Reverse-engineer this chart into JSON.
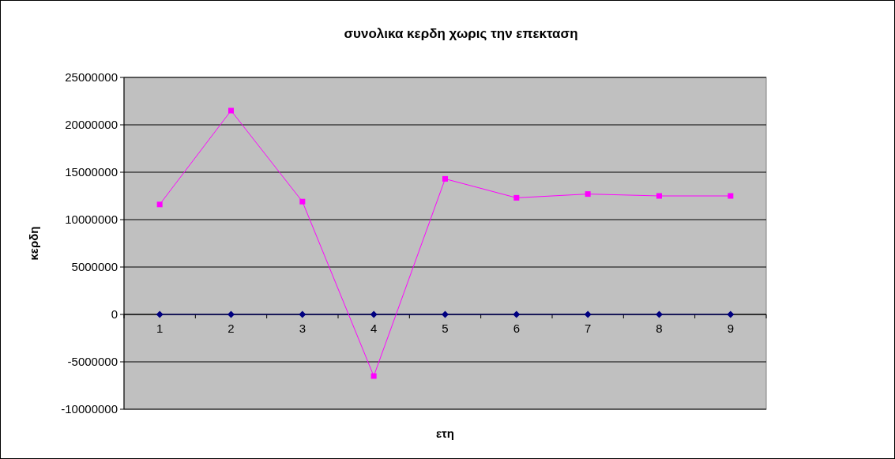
{
  "chart_data": {
    "type": "line",
    "title": "συνολικα κερδη χωρις την επεκταση",
    "xlabel": "ετη",
    "ylabel": "κερδη",
    "categories": [
      "1",
      "2",
      "3",
      "4",
      "5",
      "6",
      "7",
      "8",
      "9"
    ],
    "series": [
      {
        "color": "#000080",
        "marker": "diamond",
        "values": [
          0,
          0,
          0,
          0,
          0,
          0,
          0,
          0,
          0
        ]
      },
      {
        "color": "#ff00ff",
        "marker": "square",
        "values": [
          11600000,
          21500000,
          11900000,
          -6500000,
          14300000,
          12300000,
          12700000,
          12500000,
          12500000
        ]
      }
    ],
    "ylim": [
      -10000000,
      25000000
    ],
    "yticks": [
      -10000000,
      -5000000,
      0,
      5000000,
      10000000,
      15000000,
      20000000,
      25000000
    ],
    "grid": "y"
  }
}
